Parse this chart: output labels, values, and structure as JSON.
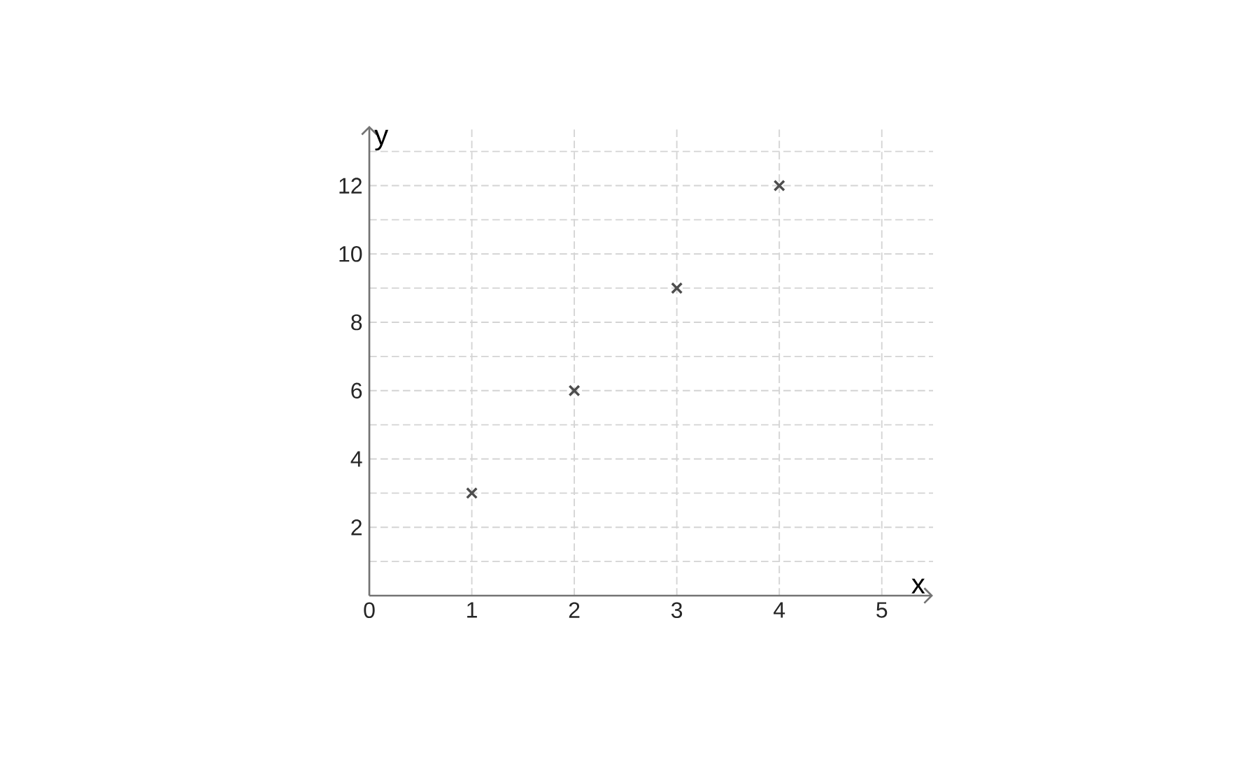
{
  "chart_data": {
    "type": "scatter",
    "x": [
      1,
      2,
      3,
      4
    ],
    "values": [
      3,
      6,
      9,
      12
    ],
    "color": "#4d4d4d",
    "marker": "cross",
    "xlabel": "x",
    "ylabel": "y",
    "xlim": [
      0,
      5.5
    ],
    "ylim": [
      0,
      13.75
    ],
    "xticks": [
      0,
      1,
      2,
      3,
      4,
      5
    ],
    "yticks": [
      {
        "value": 1,
        "label": null
      },
      2,
      {
        "value": 3,
        "label": null
      },
      4,
      {
        "value": 5,
        "label": null
      },
      6,
      {
        "value": 7,
        "label": null
      },
      8,
      {
        "value": 9,
        "label": null
      },
      10,
      {
        "value": 11,
        "label": null
      },
      12,
      {
        "value": 13,
        "label": null
      }
    ],
    "grid": true
  }
}
